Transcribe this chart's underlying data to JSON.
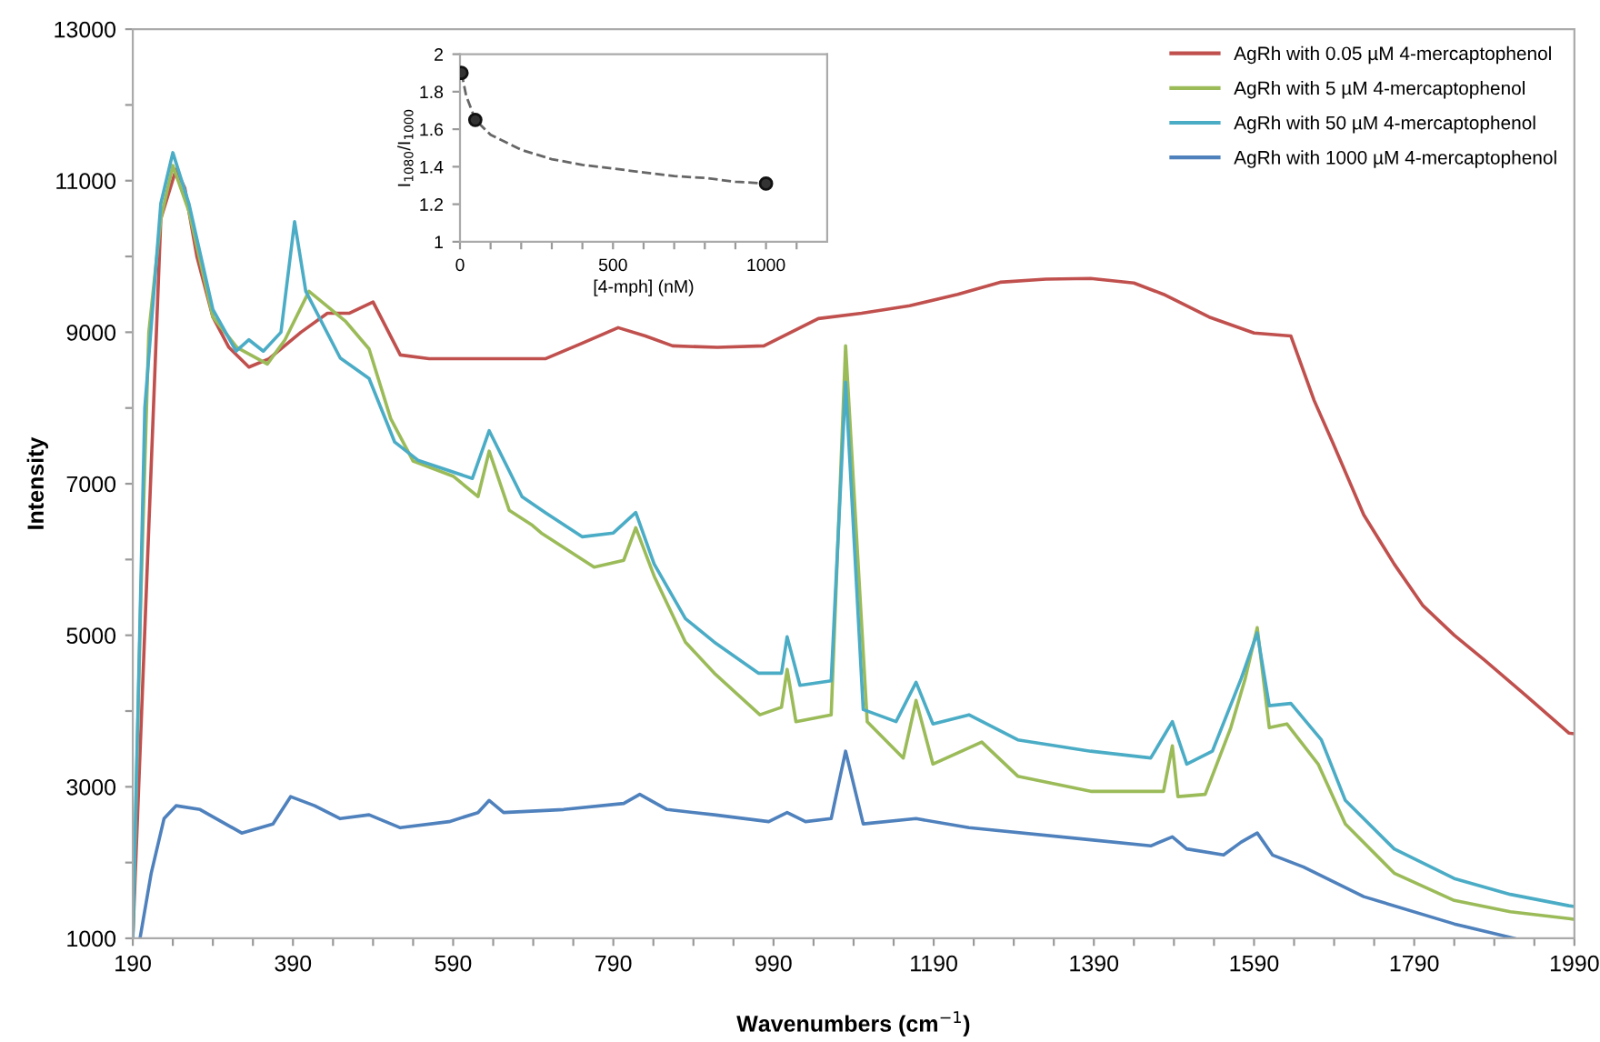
{
  "chart_data": [
    {
      "type": "line",
      "xlabel": "Wavenumbers (cm$^{−1}$)",
      "ylabel": "Intensity",
      "xlim": [
        190,
        1990
      ],
      "ylim": [
        1000,
        13000
      ],
      "xticks": [
        190,
        {
          "value": 240,
          "label": null
        },
        {
          "value": 290,
          "label": null
        },
        {
          "value": 340,
          "label": null
        },
        390,
        {
          "value": 440,
          "label": null
        },
        {
          "value": 490,
          "label": null
        },
        {
          "value": 540,
          "label": null
        },
        590,
        {
          "value": 640,
          "label": null
        },
        {
          "value": 690,
          "label": null
        },
        {
          "value": 740,
          "label": null
        },
        790,
        {
          "value": 840,
          "label": null
        },
        {
          "value": 890,
          "label": null
        },
        {
          "value": 940,
          "label": null
        },
        990,
        {
          "value": 1040,
          "label": null
        },
        {
          "value": 1090,
          "label": null
        },
        {
          "value": 1140,
          "label": null
        },
        1190,
        {
          "value": 1240,
          "label": null
        },
        {
          "value": 1290,
          "label": null
        },
        {
          "value": 1340,
          "label": null
        },
        1390,
        {
          "value": 1440,
          "label": null
        },
        {
          "value": 1490,
          "label": null
        },
        {
          "value": 1540,
          "label": null
        },
        1590,
        {
          "value": 1640,
          "label": null
        },
        {
          "value": 1690,
          "label": null
        },
        {
          "value": 1740,
          "label": null
        },
        1790,
        {
          "value": 1840,
          "label": null
        },
        {
          "value": 1890,
          "label": null
        },
        {
          "value": 1940,
          "label": null
        },
        1990
      ],
      "yticks": [
        1000,
        {
          "value": 2000,
          "label": null
        },
        3000,
        {
          "value": 4000,
          "label": null
        },
        5000,
        {
          "value": 6000,
          "label": null
        },
        7000,
        {
          "value": 8000,
          "label": null
        },
        9000,
        {
          "value": 10000,
          "label": null
        },
        11000,
        {
          "value": 12000,
          "label": null
        },
        13000
      ],
      "grid": false,
      "legend": "top right",
      "marker": "none",
      "line_style": "solid",
      "series": [
        {
          "name": "AgRh with 0.05 µM 4-mercaptophenol",
          "color": "#c0504d",
          "x": [
            190,
            225,
            244,
            255,
            270,
            290,
            310,
            335,
            360,
            400,
            433,
            460,
            490,
            524,
            560,
            620,
            705,
            750,
            796,
            830,
            864,
            920,
            978,
            1046,
            1100,
            1160,
            1220,
            1273,
            1330,
            1386,
            1440,
            1477,
            1534,
            1590,
            1636,
            1665,
            1688,
            1727,
            1765,
            1801,
            1840,
            1878,
            1930,
            1983,
            1990
          ],
          "values": [
            1000,
            10500,
            11150,
            10900,
            10000,
            9200,
            8800,
            8540,
            8650,
            9000,
            9250,
            9250,
            9400,
            8700,
            8650,
            8650,
            8650,
            8850,
            9060,
            8950,
            8820,
            8800,
            8820,
            9180,
            9250,
            9350,
            9500,
            9660,
            9700,
            9710,
            9650,
            9500,
            9200,
            8990,
            8950,
            8100,
            7550,
            6590,
            5940,
            5390,
            5000,
            4670,
            4200,
            3710,
            3700
          ]
        },
        {
          "name": "AgRh with 5 µM 4-mercaptophenol",
          "color": "#9bbb59",
          "x": [
            190,
            200,
            210,
            225,
            240,
            260,
            290,
            320,
            358,
            380,
            410,
            456,
            485,
            512,
            540,
            590,
            621,
            635,
            660,
            689,
            700,
            766,
            803,
            818,
            841,
            880,
            916,
            973,
            1000,
            1007,
            1018,
            1062,
            1080,
            1107,
            1152,
            1168,
            1189,
            1250,
            1295,
            1386,
            1477,
            1488,
            1495,
            1529,
            1561,
            1579,
            1594,
            1609,
            1631,
            1670,
            1704,
            1765,
            1840,
            1910,
            1983,
            1990
          ],
          "values": [
            1000,
            5500,
            9000,
            10500,
            11200,
            10600,
            9200,
            8800,
            8580,
            8900,
            9540,
            9140,
            8780,
            7860,
            7300,
            7100,
            6830,
            7430,
            6650,
            6450,
            6350,
            5900,
            5990,
            6420,
            5780,
            4910,
            4500,
            3950,
            4050,
            4550,
            3860,
            3950,
            8820,
            3860,
            3380,
            4140,
            3300,
            3590,
            3140,
            2940,
            2940,
            3540,
            2870,
            2900,
            3780,
            4430,
            5100,
            3780,
            3830,
            3300,
            2510,
            1860,
            1500,
            1350,
            1260,
            1250
          ]
        },
        {
          "name": "AgRh with 50 µM 4-mercaptophenol",
          "color": "#4bacc6",
          "x": [
            190,
            205,
            225,
            240,
            260,
            290,
            319,
            335,
            353,
            375,
            392,
            406,
            449,
            485,
            517,
            546,
            614,
            635,
            676,
            705,
            751,
            790,
            818,
            841,
            880,
            916,
            971,
            1000,
            1007,
            1023,
            1062,
            1080,
            1102,
            1143,
            1168,
            1189,
            1234,
            1295,
            1386,
            1461,
            1488,
            1506,
            1538,
            1574,
            1594,
            1609,
            1636,
            1674,
            1704,
            1765,
            1840,
            1910,
            1983,
            1990
          ],
          "values": [
            1000,
            8000,
            10700,
            11370,
            10700,
            9300,
            8750,
            8900,
            8750,
            9000,
            10460,
            9540,
            8660,
            8390,
            7550,
            7310,
            7070,
            7700,
            6830,
            6620,
            6300,
            6350,
            6620,
            5940,
            5220,
            4910,
            4500,
            4500,
            4980,
            4340,
            4400,
            8340,
            4020,
            3860,
            4380,
            3830,
            3950,
            3620,
            3470,
            3380,
            3860,
            3300,
            3470,
            4430,
            5030,
            4070,
            4100,
            3620,
            2820,
            2180,
            1790,
            1580,
            1430,
            1420
          ]
        },
        {
          "name": "AgRh with 1000 µM 4-mercaptophenol",
          "color": "#4f81bd",
          "x": [
            199,
            213,
            229,
            244,
            274,
            326,
            365,
            387,
            417,
            449,
            485,
            524,
            585,
            621,
            635,
            653,
            728,
            803,
            823,
            857,
            916,
            984,
            1007,
            1030,
            1062,
            1080,
            1102,
            1168,
            1234,
            1386,
            1461,
            1488,
            1506,
            1552,
            1574,
            1594,
            1613,
            1652,
            1727,
            1840,
            1915
          ],
          "values": [
            1000,
            1860,
            2580,
            2750,
            2700,
            2390,
            2510,
            2870,
            2750,
            2580,
            2630,
            2460,
            2540,
            2660,
            2820,
            2660,
            2700,
            2780,
            2900,
            2700,
            2630,
            2540,
            2660,
            2540,
            2580,
            3470,
            2510,
            2580,
            2460,
            2300,
            2220,
            2340,
            2180,
            2100,
            2270,
            2390,
            2100,
            1940,
            1550,
            1190,
            1000
          ]
        }
      ]
    },
    {
      "type": "scatter",
      "xlabel": "[4-mph] (nM)",
      "ylabel": "I$_{1080}$/I$_{1000}$",
      "xlim": [
        0,
        1200
      ],
      "ylim": [
        1,
        2
      ],
      "xticks": [
        0,
        {
          "value": 100,
          "label": null
        },
        {
          "value": 200,
          "label": null
        },
        {
          "value": 300,
          "label": null
        },
        {
          "value": 400,
          "label": null
        },
        500,
        {
          "value": 600,
          "label": null
        },
        {
          "value": 700,
          "label": null
        },
        {
          "value": 800,
          "label": null
        },
        {
          "value": 900,
          "label": null
        },
        1000,
        {
          "value": 1100,
          "label": null
        }
      ],
      "yticks": [
        1,
        1.2,
        1.4,
        1.6,
        1.8,
        2
      ],
      "grid": false,
      "legend": false,
      "series": [
        {
          "type": "line",
          "color": "#666666",
          "line_style": "dashed",
          "marker": "none",
          "x": [
            5,
            20,
            50,
            100,
            200,
            300,
            400,
            500,
            600,
            700,
            800,
            900,
            1000
          ],
          "values": [
            1.9,
            1.78,
            1.65,
            1.57,
            1.49,
            1.44,
            1.41,
            1.39,
            1.37,
            1.35,
            1.34,
            1.32,
            1.31
          ]
        },
        {
          "type": "scatter",
          "color": "#333333",
          "marker": "circle",
          "x": [
            5,
            50,
            1000
          ],
          "values": [
            1.9,
            1.65,
            1.31
          ]
        }
      ]
    }
  ]
}
